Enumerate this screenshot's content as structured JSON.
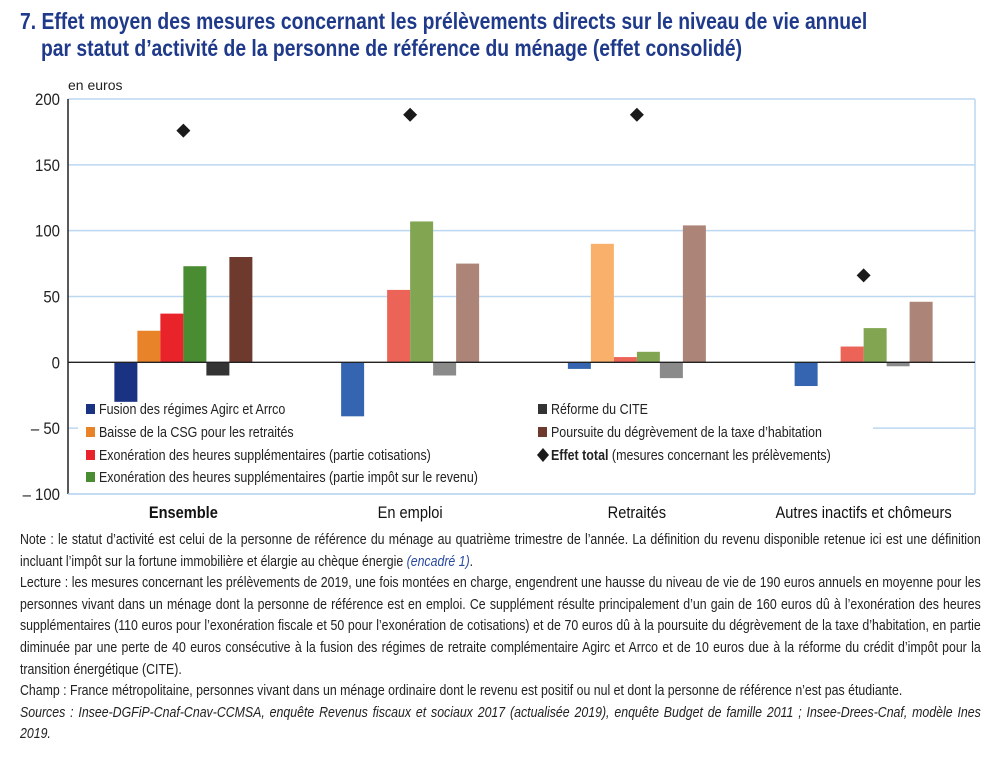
{
  "title": {
    "line1": "7. Effet moyen des mesures concernant les prélèvements directs sur le niveau de vie annuel",
    "line2": "par statut d’activité de la personne de référence du ménage (effet consolidé)"
  },
  "chart_data": {
    "type": "bar",
    "ylabel": "en euros",
    "ylim": [
      -100,
      200
    ],
    "yticks": [
      200,
      150,
      100,
      50,
      0,
      -50,
      -100
    ],
    "ytick_labels": [
      "200",
      "150",
      "100",
      "50",
      "0",
      "– 50",
      "– 100"
    ],
    "grid": true,
    "legend_placement": "bottom-inside",
    "categories": [
      "Ensemble",
      "En emploi",
      "Retraités",
      "Autres inactifs et chômeurs"
    ],
    "series": [
      {
        "name": "Fusion des régimes Agirc et Arrco",
        "values": [
          -30,
          -41,
          -5,
          -18
        ],
        "colors": [
          "#1a3282",
          "#3565b0",
          "#3565b0",
          "#3565b0"
        ]
      },
      {
        "name": "Baisse de la CSG pour les retraités",
        "values": [
          24,
          0.5,
          90,
          0.5
        ],
        "colors": [
          "#e8832a",
          "#f9b06a",
          "#f9b06a",
          "#f9b06a"
        ]
      },
      {
        "name": "Exonération des heures supplémentaires (partie cotisations)",
        "values": [
          37,
          55,
          4,
          12
        ],
        "colors": [
          "#e8232a",
          "#ec6458",
          "#ec6458",
          "#ec6458"
        ]
      },
      {
        "name": "Exonération des heures supplémentaires (partie impôt sur le revenu)",
        "values": [
          73,
          107,
          8,
          26
        ],
        "colors": [
          "#4a8c32",
          "#82a552",
          "#82a552",
          "#82a552"
        ]
      },
      {
        "name": "Réforme du CITE",
        "values": [
          -10,
          -10,
          -12,
          -3
        ],
        "colors": [
          "#333333",
          "#8a8a8a",
          "#8a8a8a",
          "#8a8a8a"
        ]
      },
      {
        "name": "Poursuite du dégrèvement de la taxe d’habitation",
        "values": [
          80,
          75,
          104,
          46
        ],
        "colors": [
          "#6e3a2e",
          "#ad8478",
          "#ad8478",
          "#ad8478"
        ]
      }
    ],
    "total": {
      "name": "Effet total",
      "name_suffix": "(mesures concernant les prélèvements)",
      "values": [
        176,
        188,
        188,
        66
      ],
      "color": "#1a1a1a"
    },
    "gridline_color": "#bcd8f0"
  },
  "notes": {
    "note": "Note : le statut d’activité est celui de la personne de référence du ménage au quatrième trimestre de l’année. La définition du revenu disponible retenue ici est une définition incluant l’impôt sur la fortune immobilière et élargie au chèque énergie ",
    "note_link": "(encadré 1)",
    "note_end": ".",
    "lecture": "Lecture : les mesures concernant les prélèvements de 2019, une fois montées en charge, engendrent une hausse du niveau de vie de 190 euros annuels en moyenne pour les personnes vivant dans un ménage dont la personne de référence est en emploi. Ce supplément résulte principalement d’un gain de 160 euros dû à l’exonération des heures supplémentaires (110 euros pour l’exonération fiscale et 50 pour l’exonération de cotisations) et de 70 euros dû à la poursuite du dégrèvement de la taxe d’habitation, en partie diminuée par une perte de 40 euros consécutive à la fusion des régimes de retraite complémentaire Agirc et Arrco et de 10 euros due à la réforme du crédit d’impôt pour la transition énergétique (CITE).",
    "champ": "Champ : France métropolitaine, personnes vivant dans un ménage ordinaire dont le revenu est positif ou nul et dont la personne de référence n’est pas étudiante.",
    "sources": "Sources : Insee-DGFiP-Cnaf-Cnav-CCMSA, enquête Revenus fiscaux et sociaux 2017 (actualisée 2019), enquête Budget de famille 2011 ; Insee-Drees-Cnaf, modèle Ines 2019."
  }
}
